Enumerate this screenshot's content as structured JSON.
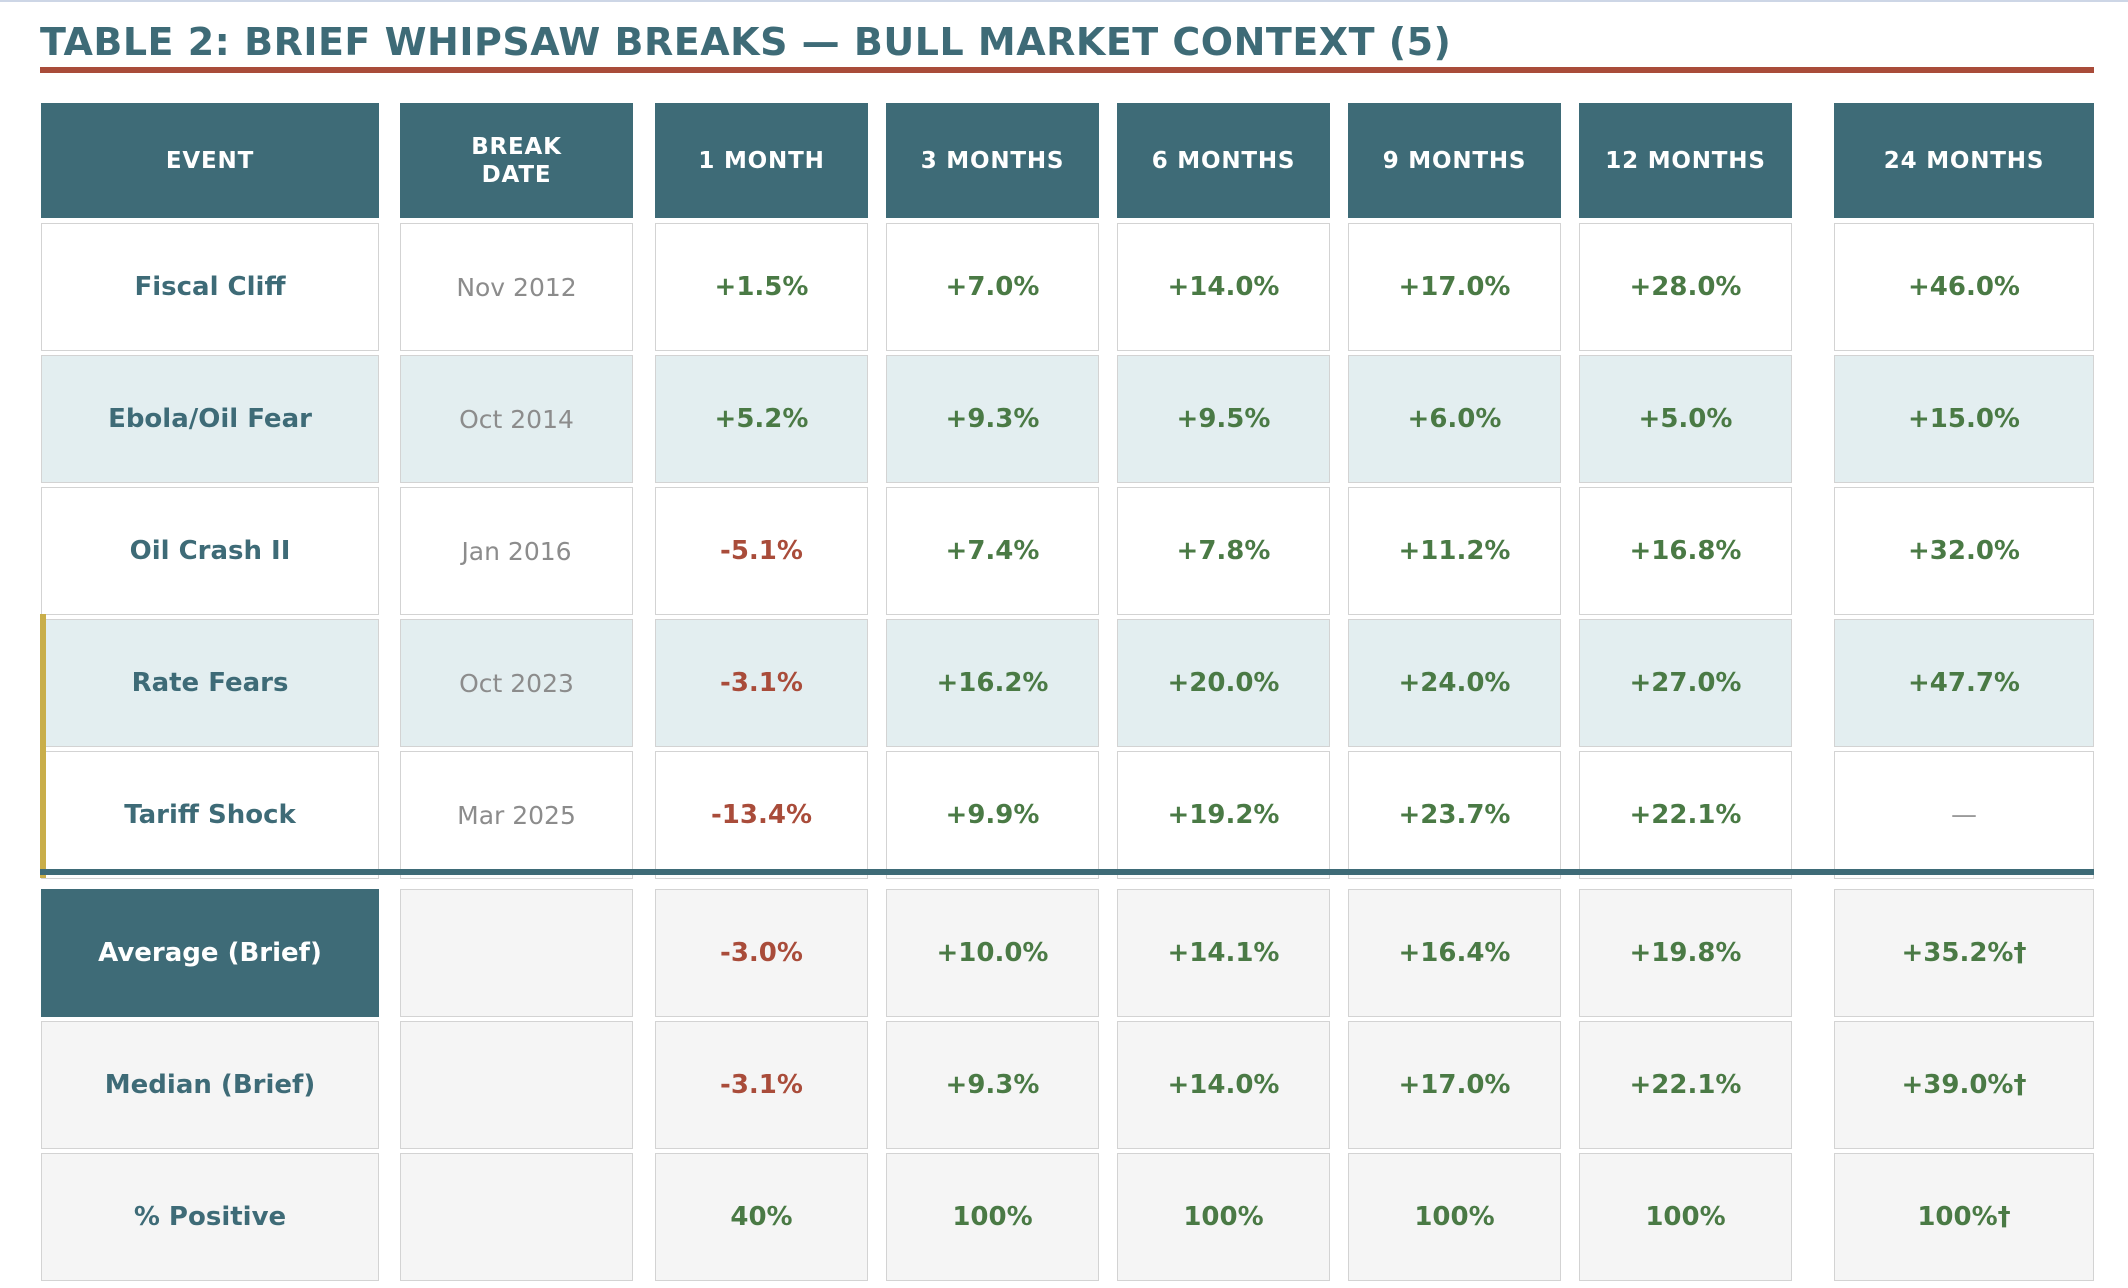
{
  "title": "TABLE 2: BRIEF WHIPSAW BREAKS — BULL MARKET CONTEXT (5)",
  "colors": {
    "header_bg": "#3e6b77",
    "title_rule": "#a94c3a",
    "positive": "#4a7a45",
    "negative": "#a94c3a",
    "alt_row": "#e3eef0",
    "summary_row": "#f5f5f5",
    "marker": "#c9ae4a"
  },
  "headers": [
    "EVENT",
    "BREAK DATE",
    "1 MONTH",
    "3 MONTHS",
    "6 MONTHS",
    "9 MONTHS",
    "12 MONTHS",
    "24 MONTHS"
  ],
  "rows": [
    {
      "event": "Fiscal Cliff",
      "date": "Nov 2012",
      "values": [
        "+1.5%",
        "+7.0%",
        "+14.0%",
        "+17.0%",
        "+28.0%",
        "+46.0%"
      ]
    },
    {
      "event": "Ebola/Oil Fear",
      "date": "Oct 2014",
      "values": [
        "+5.2%",
        "+9.3%",
        "+9.5%",
        "+6.0%",
        "+5.0%",
        "+15.0%"
      ]
    },
    {
      "event": "Oil Crash II",
      "date": "Jan 2016",
      "values": [
        "-5.1%",
        "+7.4%",
        "+7.8%",
        "+11.2%",
        "+16.8%",
        "+32.0%"
      ]
    },
    {
      "event": "Rate Fears",
      "date": "Oct 2023",
      "values": [
        "-3.1%",
        "+16.2%",
        "+20.0%",
        "+24.0%",
        "+27.0%",
        "+47.7%"
      ]
    },
    {
      "event": "Tariff Shock",
      "date": "Mar 2025",
      "values": [
        "-13.4%",
        "+9.9%",
        "+19.2%",
        "+23.7%",
        "+22.1%",
        "—"
      ]
    }
  ],
  "summary": [
    {
      "label": "Average (Brief)",
      "date": "",
      "values": [
        "-3.0%",
        "+10.0%",
        "+14.1%",
        "+16.4%",
        "+19.8%",
        "+35.2%†"
      ]
    },
    {
      "label": "Median (Brief)",
      "date": "",
      "values": [
        "-3.1%",
        "+9.3%",
        "+14.0%",
        "+17.0%",
        "+22.1%",
        "+39.0%†"
      ]
    },
    {
      "label": "% Positive",
      "date": "",
      "values": [
        "40%",
        "100%",
        "100%",
        "100%",
        "100%",
        "100%†"
      ]
    }
  ]
}
